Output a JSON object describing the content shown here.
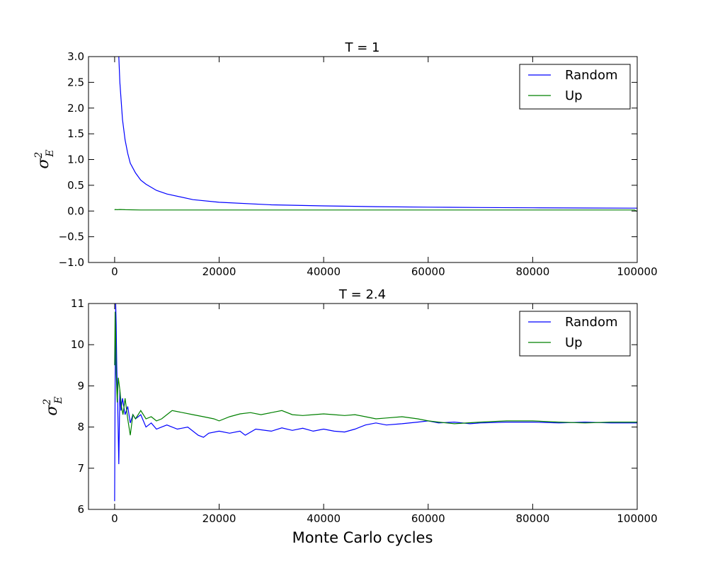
{
  "colors": {
    "random": "#0000ff",
    "up": "#008000"
  },
  "chart_data": [
    {
      "type": "line",
      "title": "T = 1",
      "xlabel": "",
      "ylabel": "σ_E^2",
      "xlim": [
        -5000,
        100000
      ],
      "ylim": [
        -1.0,
        3.0
      ],
      "xticks": [
        "0",
        "20000",
        "40000",
        "60000",
        "80000",
        "100000"
      ],
      "yticks": [
        "−1.0",
        "−0.5",
        "0.0",
        "0.5",
        "1.0",
        "1.5",
        "2.0",
        "2.5",
        "3.0"
      ],
      "legend_position": "top-right",
      "series": [
        {
          "name": "Random",
          "color": "#0000ff",
          "x": [
            800,
            1000,
            1500,
            2000,
            2500,
            3000,
            4000,
            5000,
            6000,
            8000,
            10000,
            15000,
            20000,
            30000,
            40000,
            50000,
            60000,
            70000,
            80000,
            90000,
            100000
          ],
          "y": [
            3.0,
            2.5,
            1.78,
            1.38,
            1.12,
            0.93,
            0.74,
            0.6,
            0.52,
            0.4,
            0.33,
            0.22,
            0.17,
            0.12,
            0.1,
            0.085,
            0.075,
            0.068,
            0.063,
            0.058,
            0.055
          ]
        },
        {
          "name": "Up",
          "color": "#008000",
          "x": [
            0,
            100,
            500,
            1000,
            2000,
            5000,
            20000,
            40000,
            60000,
            80000,
            99500,
            99800,
            100000
          ],
          "y": [
            0.02,
            0.03,
            0.025,
            0.03,
            0.025,
            0.02,
            0.02,
            0.02,
            0.02,
            0.02,
            0.02,
            0.0,
            0.0
          ]
        }
      ]
    },
    {
      "type": "line",
      "title": "T = 2.4",
      "xlabel": "Monte Carlo cycles",
      "ylabel": "σ_E^2",
      "xlim": [
        -5000,
        100000
      ],
      "ylim": [
        6,
        11
      ],
      "xticks": [
        "0",
        "20000",
        "40000",
        "60000",
        "80000",
        "100000"
      ],
      "yticks": [
        "6",
        "7",
        "8",
        "9",
        "10",
        "11"
      ],
      "legend_position": "top-right",
      "series": [
        {
          "name": "Random",
          "color": "#0000ff",
          "x": [
            0,
            100,
            200,
            300,
            400,
            600,
            800,
            1000,
            1200,
            1500,
            2000,
            2500,
            3000,
            3500,
            4000,
            5000,
            6000,
            7000,
            8000,
            9000,
            10000,
            12000,
            14000,
            16000,
            17000,
            18000,
            20000,
            22000,
            24000,
            25000,
            27000,
            30000,
            32000,
            34000,
            36000,
            38000,
            40000,
            42000,
            44000,
            46000,
            48000,
            50000,
            52000,
            55000,
            58000,
            60000,
            62000,
            65000,
            68000,
            70000,
            75000,
            80000,
            85000,
            90000,
            95000,
            100000
          ],
          "y": [
            6.2,
            9.0,
            11.0,
            10.5,
            9.5,
            8.5,
            7.1,
            8.9,
            8.4,
            8.7,
            8.3,
            8.5,
            8.1,
            8.3,
            8.2,
            8.3,
            8.0,
            8.1,
            7.95,
            8.0,
            8.05,
            7.95,
            8.0,
            7.8,
            7.75,
            7.85,
            7.9,
            7.85,
            7.9,
            7.8,
            7.95,
            7.9,
            7.98,
            7.92,
            7.97,
            7.9,
            7.95,
            7.9,
            7.88,
            7.95,
            8.05,
            8.1,
            8.05,
            8.08,
            8.12,
            8.15,
            8.1,
            8.12,
            8.08,
            8.1,
            8.12,
            8.12,
            8.1,
            8.12,
            8.1,
            8.1
          ]
        },
        {
          "name": "Up",
          "color": "#008000",
          "x": [
            0,
            100,
            200,
            300,
            500,
            700,
            1000,
            1300,
            1600,
            2000,
            2500,
            3000,
            3500,
            4000,
            5000,
            6000,
            7000,
            8000,
            9000,
            10000,
            11000,
            13000,
            15000,
            17000,
            19000,
            20000,
            22000,
            24000,
            26000,
            28000,
            30000,
            32000,
            34000,
            36000,
            38000,
            40000,
            42000,
            44000,
            46000,
            48000,
            50000,
            52000,
            55000,
            58000,
            60000,
            62000,
            65000,
            70000,
            75000,
            80000,
            85000,
            90000,
            95000,
            100000
          ],
          "y": [
            9.5,
            10.8,
            10.2,
            9.3,
            8.6,
            9.2,
            8.9,
            8.5,
            8.3,
            8.7,
            8.2,
            7.8,
            8.3,
            8.2,
            8.4,
            8.2,
            8.25,
            8.15,
            8.2,
            8.3,
            8.4,
            8.35,
            8.3,
            8.25,
            8.2,
            8.15,
            8.25,
            8.32,
            8.35,
            8.3,
            8.35,
            8.4,
            8.3,
            8.28,
            8.3,
            8.32,
            8.3,
            8.28,
            8.3,
            8.25,
            8.2,
            8.22,
            8.25,
            8.2,
            8.15,
            8.12,
            8.08,
            8.12,
            8.15,
            8.15,
            8.12,
            8.1,
            8.12,
            8.12
          ]
        }
      ]
    }
  ]
}
